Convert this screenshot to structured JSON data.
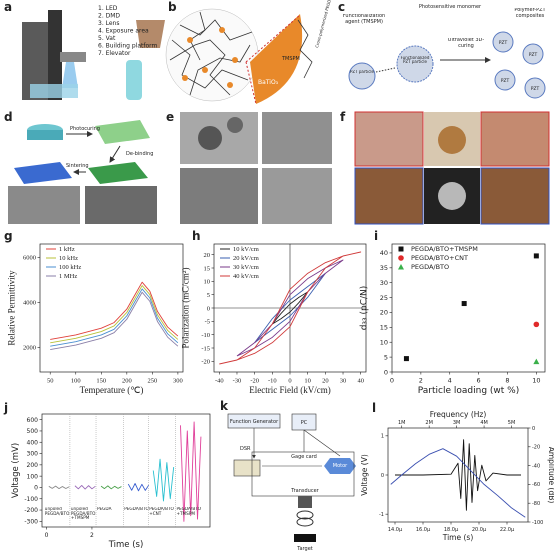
{
  "panels": {
    "a": {
      "label": "a",
      "items": [
        "1. LED",
        "2. DMD",
        "3. Lens",
        "4. Exposure area",
        "5. Vat",
        "6. Building platform",
        "7. Elevator"
      ]
    },
    "b": {
      "label": "b",
      "monomer": "TMSPM",
      "particle": "BaTiO₃",
      "network": "Cross-polymerized PEGDA"
    },
    "c": {
      "label": "c",
      "agent": "Functionalization agent (TMSPM)",
      "monomer": "Photosensitive monomer",
      "composite": "Polymer-PZT composites",
      "particle": "PZT particle",
      "functionalized": "Functionalized PZT particle",
      "curing": "Ultraviolet 3D-curing",
      "pzt": "PZT"
    },
    "d": {
      "label": "d",
      "steps": [
        "Photocuring",
        "De-binding",
        "Sintering"
      ]
    },
    "e": {
      "label": "e"
    },
    "f": {
      "label": "f"
    },
    "g": {
      "label": "g"
    },
    "h": {
      "label": "h"
    },
    "i": {
      "label": "i"
    },
    "j": {
      "label": "j"
    },
    "k": {
      "label": "k",
      "boxes": [
        "Function Generator",
        "PC",
        "Gage card",
        "Motor",
        "Transducer",
        "Target"
      ],
      "signal": "DSR"
    },
    "l": {
      "label": "l"
    }
  },
  "chart_data": [
    {
      "type": "line",
      "x_label": "Temperature (℃)",
      "y_label": "Relative Permittivity",
      "legend": "top-left",
      "x": [
        50,
        75,
        100,
        125,
        150,
        175,
        200,
        215,
        230,
        245,
        260,
        280,
        300
      ],
      "xlim": [
        30,
        310
      ],
      "xticks": [
        50,
        100,
        150,
        200,
        250,
        300
      ],
      "ylim": [
        900,
        6600
      ],
      "yticks": [
        2000,
        4000,
        6000
      ],
      "series": [
        {
          "name": "1 kHz",
          "color": "#e0403a",
          "values": [
            2350,
            2450,
            2550,
            2700,
            2850,
            3100,
            3700,
            4300,
            4900,
            4500,
            3600,
            2900,
            2500
          ]
        },
        {
          "name": "10 kHz",
          "color": "#b9c23a",
          "values": [
            2200,
            2300,
            2400,
            2550,
            2700,
            2950,
            3550,
            4150,
            4750,
            4350,
            3450,
            2750,
            2350
          ]
        },
        {
          "name": "100 kHz",
          "color": "#4a8fd0",
          "values": [
            2050,
            2150,
            2250,
            2400,
            2550,
            2800,
            3400,
            4000,
            4600,
            4200,
            3300,
            2600,
            2200
          ]
        },
        {
          "name": "1 MHz",
          "color": "#8a7fa8",
          "values": [
            1900,
            2000,
            2100,
            2250,
            2400,
            2650,
            3250,
            3850,
            4450,
            4050,
            3150,
            2450,
            2050
          ]
        }
      ]
    },
    {
      "type": "line",
      "x_label": "Electric Field (kV/cm)",
      "y_label": "Polarization (mC/cm²)",
      "legend": "top-left",
      "zero_lines": true,
      "xlim": [
        -43,
        43
      ],
      "xticks": [
        -40,
        -30,
        -20,
        -10,
        0,
        10,
        20,
        30,
        40
      ],
      "ylim": [
        -24,
        24
      ],
      "yticks": [
        -20,
        -15,
        -10,
        -5,
        0,
        5,
        10,
        15,
        20
      ],
      "series": [
        {
          "name": "10 kV/cm",
          "color": "#222222",
          "x": [
            -10,
            -5,
            0,
            5,
            10,
            5,
            0,
            -5,
            -10
          ],
          "values": [
            -6,
            -4,
            -1.5,
            2,
            6,
            4,
            1.5,
            -2,
            -6
          ]
        },
        {
          "name": "20 kV/cm",
          "color": "#3a5fb0",
          "x": [
            -20,
            -10,
            0,
            10,
            20,
            10,
            0,
            -10,
            -20
          ],
          "values": [
            -13,
            -8,
            -3,
            4,
            13,
            8,
            3,
            -4,
            -13
          ]
        },
        {
          "name": "30 kV/cm",
          "color": "#7a3a8a",
          "x": [
            -30,
            -20,
            -10,
            0,
            10,
            20,
            30,
            20,
            10,
            0,
            -10,
            -20,
            -30
          ],
          "values": [
            -18,
            -15,
            -11,
            -5,
            6,
            13,
            18,
            15,
            11,
            5,
            -6,
            -13,
            -18
          ]
        },
        {
          "name": "40 kV/cm",
          "color": "#d03a3a",
          "x": [
            -40,
            -30,
            -20,
            -10,
            0,
            10,
            20,
            30,
            40,
            30,
            20,
            10,
            0,
            -10,
            -20,
            -30,
            -40
          ],
          "values": [
            -21,
            -19.5,
            -17,
            -13,
            -7,
            6,
            15,
            19.5,
            21,
            19.5,
            17,
            13,
            7,
            -6,
            -15,
            -19.5,
            -21
          ]
        }
      ]
    },
    {
      "type": "scatter",
      "x_label": "Particle loading (wt %)",
      "y_label": "d₃₃ (pC/N)",
      "legend": "top-left",
      "xlim": [
        0,
        10.6
      ],
      "xticks": [
        0,
        2,
        4,
        6,
        8,
        10
      ],
      "ylim": [
        0,
        43
      ],
      "yticks": [
        0,
        5,
        10,
        15,
        20,
        25,
        30,
        35,
        40
      ],
      "series": [
        {
          "name": "PEGDA/BTO+TMSPM",
          "color": "#111111",
          "marker": "square",
          "x": [
            1,
            5,
            10
          ],
          "values": [
            4.5,
            23,
            39
          ]
        },
        {
          "name": "PEGDA/BTO+CNT",
          "color": "#e02a2a",
          "marker": "circle",
          "x": [
            10
          ],
          "values": [
            16
          ]
        },
        {
          "name": "PEGDA/BTO",
          "color": "#3ab04a",
          "marker": "triangle",
          "x": [
            10
          ],
          "values": [
            3.5
          ]
        }
      ]
    },
    {
      "type": "line",
      "x_label": "Time (s)",
      "y_label": "Voltage (mV)",
      "legend": "bottom",
      "xlim": [
        -0.2,
        7.2
      ],
      "xticks": [
        0,
        2
      ],
      "ylim": [
        -350,
        650
      ],
      "yticks": [
        -300,
        -200,
        -100,
        0,
        100,
        200,
        300,
        400,
        500,
        600
      ],
      "series": [
        {
          "name": "unpoled PEGDA/BTO",
          "color": "#8a8a8a",
          "x": [
            0.1,
            0.25,
            0.4,
            0.55,
            0.7,
            0.85,
            1.0
          ],
          "values": [
            10,
            -8,
            12,
            -10,
            8,
            -9,
            6
          ]
        },
        {
          "name": "unpoled PEGDA/BTO +TMSPM",
          "color": "#9a6ab8",
          "x": [
            1.25,
            1.4,
            1.55,
            1.7,
            1.85,
            2.0,
            2.15
          ],
          "values": [
            15,
            -12,
            18,
            -14,
            16,
            -12,
            10
          ]
        },
        {
          "name": "PEGDA",
          "color": "#4aa04a",
          "x": [
            2.4,
            2.55,
            2.7,
            2.85,
            3.0,
            3.15,
            3.3
          ],
          "values": [
            12,
            -10,
            14,
            -12,
            10,
            -8,
            8
          ]
        },
        {
          "name": "PEGDA/BTO",
          "color": "#3a5fd0",
          "x": [
            3.6,
            3.75,
            3.9,
            4.05,
            4.2,
            4.35,
            4.5
          ],
          "values": [
            30,
            -25,
            35,
            -30,
            28,
            -26,
            20
          ]
        },
        {
          "name": "PEGDA/BTO +CNT",
          "color": "#2ac0d0",
          "x": [
            4.7,
            4.85,
            5.0,
            5.15,
            5.3,
            5.45,
            5.6
          ],
          "values": [
            150,
            -80,
            250,
            -120,
            220,
            -100,
            180
          ]
        },
        {
          "name": "PEGDA/BTO +TMSPM",
          "color": "#e0409a",
          "x": [
            5.9,
            6.05,
            6.2,
            6.35,
            6.5,
            6.65,
            6.8
          ],
          "values": [
            550,
            -300,
            500,
            -250,
            580,
            -280,
            450
          ]
        }
      ]
    },
    {
      "type": "line",
      "x_label": "Time (s)",
      "x2_label": "Frequency (Hz)",
      "y_label": "Voltage (V)",
      "y2_label": "Amplitude (dB)",
      "xlim": [
        1.35e-05,
        2.35e-05
      ],
      "xticks": [
        {
          "value": 1.4e-05,
          "label": "14.0μ"
        },
        {
          "value": 1.6e-05,
          "label": "16.0μ"
        },
        {
          "value": 1.8e-05,
          "label": "18.0μ"
        },
        {
          "value": 2e-05,
          "label": "20.0μ"
        },
        {
          "value": 2.2e-05,
          "label": "22.0μ"
        }
      ],
      "x2lim": [
        500000,
        5600000
      ],
      "x2ticks": [
        {
          "value": 1000000,
          "label": "1M"
        },
        {
          "value": 2000000,
          "label": "2M"
        },
        {
          "value": 3000000,
          "label": "3M"
        },
        {
          "value": 4000000,
          "label": "4M"
        },
        {
          "value": 5000000,
          "label": "5M"
        }
      ],
      "ylim": [
        -1.2,
        1.2
      ],
      "yticks": [
        -1,
        0,
        1
      ],
      "y2lim": [
        -100,
        0
      ],
      "y2ticks": [
        0,
        -20,
        -40,
        -60,
        -80,
        -100
      ],
      "series": [
        {
          "color": "#111111",
          "x": [
            1.4e-05,
            1.6e-05,
            1.8e-05,
            1.85e-05,
            1.87e-05,
            1.89e-05,
            1.91e-05,
            1.93e-05,
            1.95e-05,
            1.97e-05,
            1.99e-05,
            2.02e-05,
            2.05e-05,
            2.1e-05,
            2.2e-05,
            2.3e-05
          ],
          "values": [
            0,
            0,
            0.02,
            0.3,
            -0.6,
            0.9,
            -0.9,
            0.8,
            -0.7,
            0.5,
            -0.4,
            0.25,
            -0.15,
            0.05,
            0,
            0
          ]
        },
        {
          "color": "#3a4fb0",
          "xaxis": "x2",
          "axis": "y2",
          "x": [
            600000,
            1000000,
            1500000,
            2000000,
            2500000,
            3000000,
            3500000,
            4000000,
            4500000,
            5000000,
            5500000
          ],
          "values": [
            -60,
            -50,
            -38,
            -28,
            -22,
            -30,
            -45,
            -60,
            -72,
            -85,
            -95
          ]
        }
      ]
    }
  ]
}
